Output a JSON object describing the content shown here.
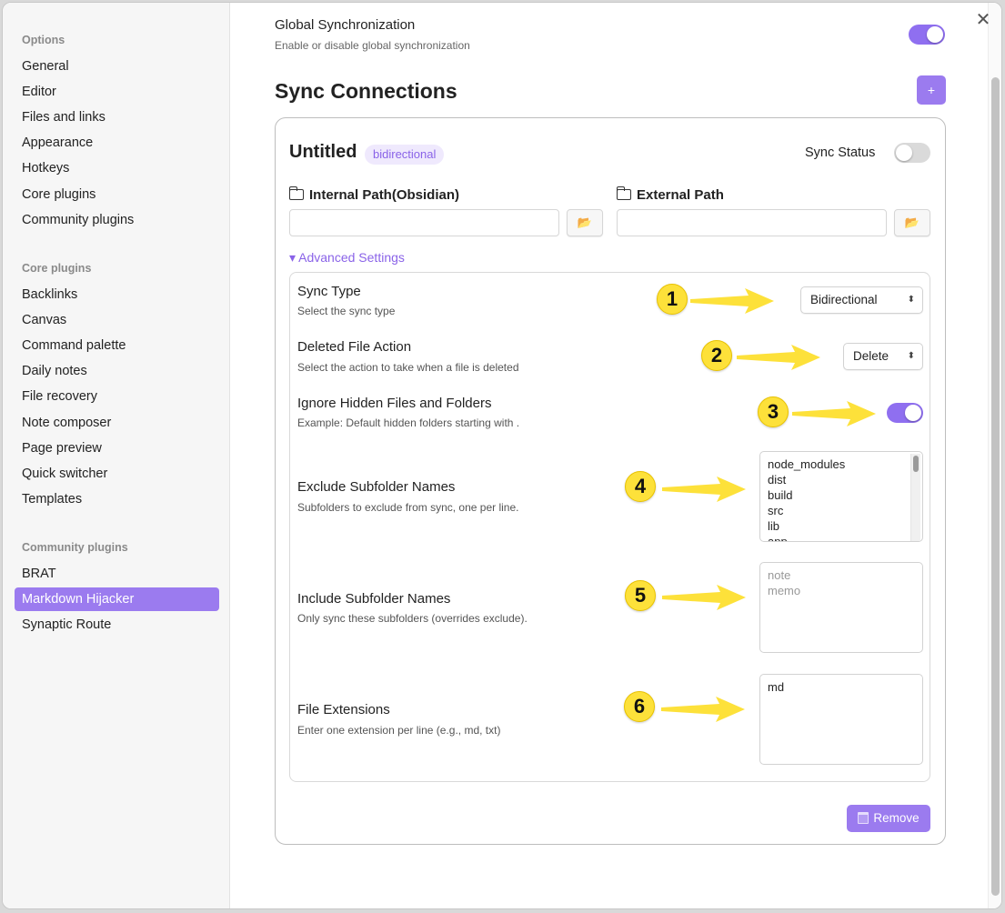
{
  "sidebar": {
    "options_title": "Options",
    "options_items": [
      "General",
      "Editor",
      "Files and links",
      "Appearance",
      "Hotkeys",
      "Core plugins",
      "Community plugins"
    ],
    "core_title": "Core plugins",
    "core_items": [
      "Backlinks",
      "Canvas",
      "Command palette",
      "Daily notes",
      "File recovery",
      "Note composer",
      "Page preview",
      "Quick switcher",
      "Templates"
    ],
    "community_title": "Community plugins",
    "community_items": [
      "BRAT",
      "Markdown Hijacker",
      "Synaptic Route"
    ],
    "active_item": "Markdown Hijacker"
  },
  "global": {
    "title": "Global Synchronization",
    "desc": "Enable or disable global synchronization",
    "enabled": true
  },
  "sync_connections": {
    "heading": "Sync Connections",
    "add_label": "+"
  },
  "connection": {
    "name": "Untitled",
    "badge": "bidirectional",
    "sync_status_label": "Sync Status",
    "sync_status_on": false,
    "internal_label": "Internal Path(Obsidian)",
    "external_label": "External Path",
    "internal_value": "",
    "external_value": "",
    "advanced_label": "▾ Advanced Settings",
    "remove_label": "Remove"
  },
  "advanced": {
    "sync_type": {
      "title": "Sync Type",
      "desc": "Select the sync type",
      "value": "Bidirectional"
    },
    "deleted_action": {
      "title": "Deleted File Action",
      "desc": "Select the action to take when a file is deleted",
      "value": "Delete"
    },
    "ignore_hidden": {
      "title": "Ignore Hidden Files and Folders",
      "desc": "Example: Default hidden folders starting with .",
      "enabled": true
    },
    "exclude": {
      "title": "Exclude Subfolder Names",
      "desc": "Subfolders to exclude from sync, one per line.",
      "value": "node_modules\ndist\nbuild\nsrc\nlib\napp"
    },
    "include": {
      "title": "Include Subfolder Names",
      "desc": "Only sync these subfolders (overrides exclude).",
      "placeholder": "note\nmemo"
    },
    "extensions": {
      "title": "File Extensions",
      "desc": "Enter one extension per line (e.g., md, txt)",
      "value": "md"
    }
  },
  "markers": [
    "1",
    "2",
    "3",
    "4",
    "5",
    "6"
  ],
  "colors": {
    "accent": "#9b7bef",
    "marker": "#fde13a"
  }
}
